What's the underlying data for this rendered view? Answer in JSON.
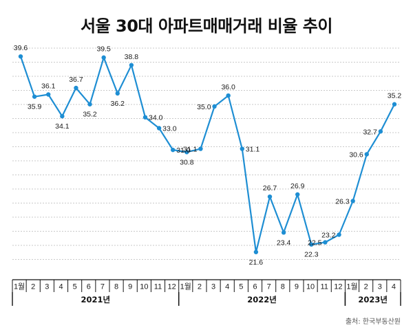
{
  "chart_data": {
    "type": "line",
    "title": "서울 30대 아파트매매거래 비율 추이",
    "xlabel": "",
    "ylabel": "",
    "ylim": [
      19.5,
      41.0
    ],
    "grid": true,
    "categories": [
      "1월",
      "2",
      "3",
      "4",
      "5",
      "6",
      "7",
      "8",
      "9",
      "10",
      "11",
      "12",
      "1월",
      "2",
      "3",
      "4",
      "5",
      "6",
      "7",
      "8",
      "9",
      "10",
      "11",
      "12",
      "1월",
      "2",
      "3",
      "4"
    ],
    "years": [
      {
        "label": "2021년",
        "months": 12
      },
      {
        "label": "2022년",
        "months": 12
      },
      {
        "label": "2023년",
        "months": 4
      }
    ],
    "series": [
      {
        "name": "서울 30대 아파트매매거래 비율",
        "color": "#1e8ed3",
        "values": [
          39.6,
          35.9,
          36.1,
          34.1,
          36.7,
          35.2,
          39.5,
          36.2,
          38.8,
          34.0,
          33.0,
          31.0,
          30.8,
          31.1,
          35.0,
          36.0,
          31.1,
          21.6,
          26.7,
          23.4,
          26.9,
          22.3,
          22.5,
          23.2,
          26.3,
          30.6,
          32.7,
          35.2
        ]
      }
    ],
    "labels": [
      "39.6",
      "35.9",
      "36.1",
      "34.1",
      "36.7",
      "35.2",
      "39.5",
      "36.2",
      "38.8",
      "34.0",
      "33.0",
      "31.0",
      "30.8",
      "31.1",
      "35.0",
      "36.0",
      "31.1",
      "21.6",
      "26.7",
      "23.4",
      "26.9",
      "22.3",
      "22.5",
      "23.2",
      "26.3",
      "30.6",
      "32.7",
      "35.2"
    ],
    "source": "출처: 한국부동산원"
  }
}
